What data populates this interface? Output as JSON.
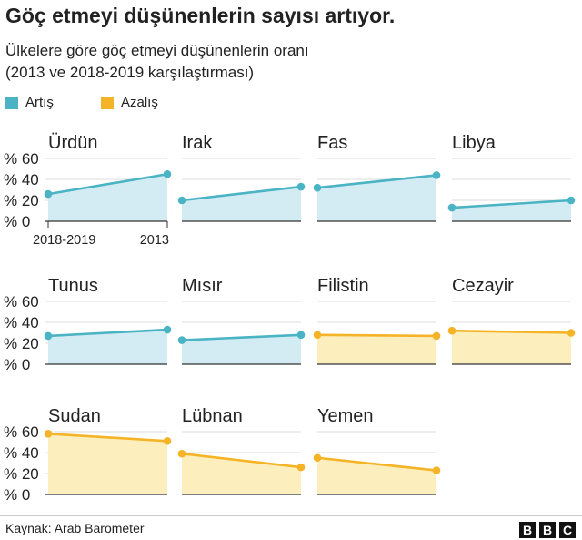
{
  "title": "Göç etmeyi düşünenlerin sayısı artıyor.",
  "subtitle_line1": "Ülkelere göre göç etmeyi düşünenlerin oranı",
  "subtitle_line2": "(2013 ve 2018-2019 karşılaştırması)",
  "legend": [
    {
      "label": "Artış",
      "color": "#4ab3c4"
    },
    {
      "label": "Azalış",
      "color": "#f5b427"
    }
  ],
  "colors": {
    "increase_line": "#4ab3c4",
    "increase_fill": "#d3ecf3",
    "decrease_line": "#f5b427",
    "decrease_fill": "#fdeebd"
  },
  "chart_data": {
    "type": "area",
    "x": [
      "2018-2019",
      "2013"
    ],
    "ylim": [
      0,
      60
    ],
    "yticks": [
      "% 60",
      "% 40",
      "% 20",
      "% 0"
    ],
    "xtick_labels": [
      "2018-2019",
      "2013"
    ],
    "panels": [
      {
        "name": "Ürdün",
        "trend": "increase",
        "values": [
          26,
          45
        ]
      },
      {
        "name": "Irak",
        "trend": "increase",
        "values": [
          20,
          33
        ]
      },
      {
        "name": "Fas",
        "trend": "increase",
        "values": [
          32,
          44
        ]
      },
      {
        "name": "Libya",
        "trend": "increase",
        "values": [
          13,
          20
        ]
      },
      {
        "name": "Tunus",
        "trend": "increase",
        "values": [
          27,
          33
        ]
      },
      {
        "name": "Mısır",
        "trend": "increase",
        "values": [
          23,
          28
        ]
      },
      {
        "name": "Filistin",
        "trend": "decrease",
        "values": [
          28,
          27
        ]
      },
      {
        "name": "Cezayir",
        "trend": "decrease",
        "values": [
          32,
          30
        ]
      },
      {
        "name": "Sudan",
        "trend": "decrease",
        "values": [
          58,
          51
        ]
      },
      {
        "name": "Lübnan",
        "trend": "decrease",
        "values": [
          39,
          26
        ]
      },
      {
        "name": "Yemen",
        "trend": "decrease",
        "values": [
          35,
          23
        ]
      }
    ]
  },
  "source": "Kaynak: Arab Barometer",
  "logo_letters": [
    "B",
    "B",
    "C"
  ]
}
